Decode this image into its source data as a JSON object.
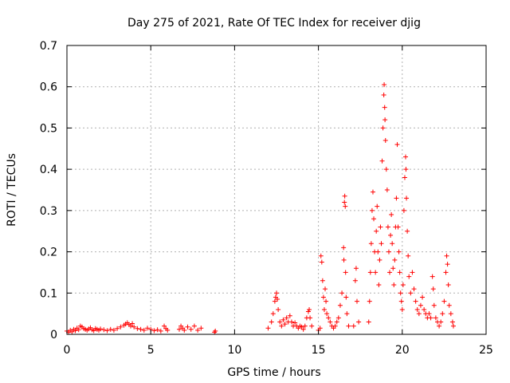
{
  "chart_data": {
    "type": "scatter",
    "title": "Day 275 of 2021, Rate Of TEC Index for receiver djig",
    "xlabel": "GPS time / hours",
    "ylabel": "ROTI / TECUs",
    "xlim": [
      0,
      25
    ],
    "ylim": [
      0,
      0.7
    ],
    "x_ticks": [
      "0",
      "5",
      "10",
      "15",
      "20",
      "25"
    ],
    "y_ticks": [
      "0",
      "0.1",
      "0.2",
      "0.3",
      "0.4",
      "0.5",
      "0.6",
      "0.7"
    ],
    "grid": true,
    "marker": "+",
    "color": "#ff0000",
    "series": [
      {
        "points": [
          [
            0.0,
            0.008
          ],
          [
            0.1,
            0.005
          ],
          [
            0.2,
            0.01
          ],
          [
            0.3,
            0.006
          ],
          [
            0.4,
            0.012
          ],
          [
            0.5,
            0.009
          ],
          [
            0.6,
            0.015
          ],
          [
            0.7,
            0.011
          ],
          [
            0.8,
            0.02
          ],
          [
            0.9,
            0.018
          ],
          [
            1.0,
            0.014
          ],
          [
            1.1,
            0.012
          ],
          [
            1.2,
            0.01
          ],
          [
            1.3,
            0.013
          ],
          [
            1.4,
            0.016
          ],
          [
            1.5,
            0.011
          ],
          [
            1.6,
            0.009
          ],
          [
            1.7,
            0.014
          ],
          [
            1.8,
            0.012
          ],
          [
            1.9,
            0.01
          ],
          [
            2.0,
            0.013
          ],
          [
            2.2,
            0.011
          ],
          [
            2.4,
            0.009
          ],
          [
            2.6,
            0.012
          ],
          [
            2.8,
            0.01
          ],
          [
            3.0,
            0.014
          ],
          [
            3.2,
            0.018
          ],
          [
            3.4,
            0.022
          ],
          [
            3.5,
            0.025
          ],
          [
            3.6,
            0.028
          ],
          [
            3.7,
            0.024
          ],
          [
            3.8,
            0.02
          ],
          [
            3.9,
            0.026
          ],
          [
            4.0,
            0.018
          ],
          [
            4.2,
            0.014
          ],
          [
            4.4,
            0.012
          ],
          [
            4.6,
            0.01
          ],
          [
            4.8,
            0.015
          ],
          [
            5.0,
            0.012
          ],
          [
            5.2,
            0.009
          ],
          [
            5.4,
            0.011
          ],
          [
            5.6,
            0.008
          ],
          [
            5.8,
            0.02
          ],
          [
            5.9,
            0.014
          ],
          [
            6.0,
            0.01
          ],
          [
            6.7,
            0.012
          ],
          [
            6.8,
            0.02
          ],
          [
            6.9,
            0.015
          ],
          [
            7.0,
            0.01
          ],
          [
            7.2,
            0.018
          ],
          [
            7.4,
            0.012
          ],
          [
            7.6,
            0.02
          ],
          [
            7.8,
            0.01
          ],
          [
            8.0,
            0.015
          ],
          [
            8.8,
            0.005
          ],
          [
            8.85,
            0.008
          ],
          [
            12.0,
            0.015
          ],
          [
            12.2,
            0.03
          ],
          [
            12.3,
            0.05
          ],
          [
            12.4,
            0.08
          ],
          [
            12.45,
            0.09
          ],
          [
            12.5,
            0.1
          ],
          [
            12.55,
            0.085
          ],
          [
            12.6,
            0.06
          ],
          [
            12.7,
            0.03
          ],
          [
            12.8,
            0.02
          ],
          [
            12.9,
            0.035
          ],
          [
            13.0,
            0.025
          ],
          [
            13.1,
            0.04
          ],
          [
            13.2,
            0.03
          ],
          [
            13.3,
            0.045
          ],
          [
            13.4,
            0.03
          ],
          [
            13.5,
            0.02
          ],
          [
            13.6,
            0.028
          ],
          [
            13.7,
            0.02
          ],
          [
            13.8,
            0.015
          ],
          [
            13.9,
            0.02
          ],
          [
            14.0,
            0.018
          ],
          [
            14.1,
            0.012
          ],
          [
            14.2,
            0.02
          ],
          [
            14.3,
            0.04
          ],
          [
            14.4,
            0.055
          ],
          [
            14.45,
            0.06
          ],
          [
            14.5,
            0.04
          ],
          [
            14.6,
            0.02
          ],
          [
            15.0,
            0.01
          ],
          [
            15.1,
            0.015
          ],
          [
            15.15,
            0.19
          ],
          [
            15.2,
            0.175
          ],
          [
            15.25,
            0.13
          ],
          [
            15.3,
            0.09
          ],
          [
            15.35,
            0.06
          ],
          [
            15.4,
            0.11
          ],
          [
            15.45,
            0.08
          ],
          [
            15.5,
            0.05
          ],
          [
            15.6,
            0.04
          ],
          [
            15.7,
            0.03
          ],
          [
            15.8,
            0.02
          ],
          [
            15.9,
            0.015
          ],
          [
            16.0,
            0.02
          ],
          [
            16.1,
            0.03
          ],
          [
            16.2,
            0.04
          ],
          [
            16.3,
            0.07
          ],
          [
            16.4,
            0.1
          ],
          [
            16.5,
            0.21
          ],
          [
            16.52,
            0.18
          ],
          [
            16.55,
            0.32
          ],
          [
            16.57,
            0.335
          ],
          [
            16.6,
            0.31
          ],
          [
            16.62,
            0.15
          ],
          [
            16.65,
            0.09
          ],
          [
            16.7,
            0.05
          ],
          [
            16.8,
            0.02
          ],
          [
            17.1,
            0.02
          ],
          [
            17.2,
            0.13
          ],
          [
            17.25,
            0.16
          ],
          [
            17.3,
            0.08
          ],
          [
            17.4,
            0.03
          ],
          [
            18.0,
            0.03
          ],
          [
            18.05,
            0.08
          ],
          [
            18.1,
            0.15
          ],
          [
            18.15,
            0.22
          ],
          [
            18.2,
            0.3
          ],
          [
            18.25,
            0.345
          ],
          [
            18.3,
            0.28
          ],
          [
            18.35,
            0.2
          ],
          [
            18.4,
            0.15
          ],
          [
            18.45,
            0.25
          ],
          [
            18.5,
            0.31
          ],
          [
            18.55,
            0.2
          ],
          [
            18.6,
            0.12
          ],
          [
            18.65,
            0.18
          ],
          [
            18.7,
            0.26
          ],
          [
            18.75,
            0.22
          ],
          [
            18.8,
            0.42
          ],
          [
            18.85,
            0.5
          ],
          [
            18.9,
            0.58
          ],
          [
            18.92,
            0.605
          ],
          [
            18.95,
            0.55
          ],
          [
            18.97,
            0.52
          ],
          [
            19.0,
            0.47
          ],
          [
            19.05,
            0.4
          ],
          [
            19.1,
            0.35
          ],
          [
            19.15,
            0.26
          ],
          [
            19.2,
            0.2
          ],
          [
            19.25,
            0.15
          ],
          [
            19.3,
            0.24
          ],
          [
            19.35,
            0.29
          ],
          [
            19.4,
            0.22
          ],
          [
            19.45,
            0.16
          ],
          [
            19.5,
            0.12
          ],
          [
            19.55,
            0.18
          ],
          [
            19.6,
            0.26
          ],
          [
            19.65,
            0.33
          ],
          [
            19.7,
            0.46
          ],
          [
            19.75,
            0.26
          ],
          [
            19.8,
            0.2
          ],
          [
            19.85,
            0.15
          ],
          [
            19.9,
            0.1
          ],
          [
            19.95,
            0.08
          ],
          [
            20.0,
            0.06
          ],
          [
            20.05,
            0.12
          ],
          [
            20.1,
            0.3
          ],
          [
            20.15,
            0.38
          ],
          [
            20.2,
            0.43
          ],
          [
            20.22,
            0.4
          ],
          [
            20.25,
            0.33
          ],
          [
            20.3,
            0.25
          ],
          [
            20.35,
            0.19
          ],
          [
            20.4,
            0.14
          ],
          [
            20.5,
            0.1
          ],
          [
            20.6,
            0.15
          ],
          [
            20.7,
            0.11
          ],
          [
            20.8,
            0.08
          ],
          [
            20.9,
            0.06
          ],
          [
            21.0,
            0.05
          ],
          [
            21.1,
            0.07
          ],
          [
            21.2,
            0.09
          ],
          [
            21.3,
            0.06
          ],
          [
            21.4,
            0.05
          ],
          [
            21.5,
            0.04
          ],
          [
            21.6,
            0.05
          ],
          [
            21.7,
            0.04
          ],
          [
            21.8,
            0.14
          ],
          [
            21.85,
            0.11
          ],
          [
            21.9,
            0.07
          ],
          [
            22.0,
            0.04
          ],
          [
            22.1,
            0.03
          ],
          [
            22.2,
            0.02
          ],
          [
            22.3,
            0.03
          ],
          [
            22.4,
            0.05
          ],
          [
            22.5,
            0.08
          ],
          [
            22.6,
            0.15
          ],
          [
            22.65,
            0.19
          ],
          [
            22.7,
            0.17
          ],
          [
            22.75,
            0.12
          ],
          [
            22.8,
            0.07
          ],
          [
            22.9,
            0.05
          ],
          [
            23.0,
            0.03
          ],
          [
            23.05,
            0.02
          ]
        ]
      }
    ]
  }
}
